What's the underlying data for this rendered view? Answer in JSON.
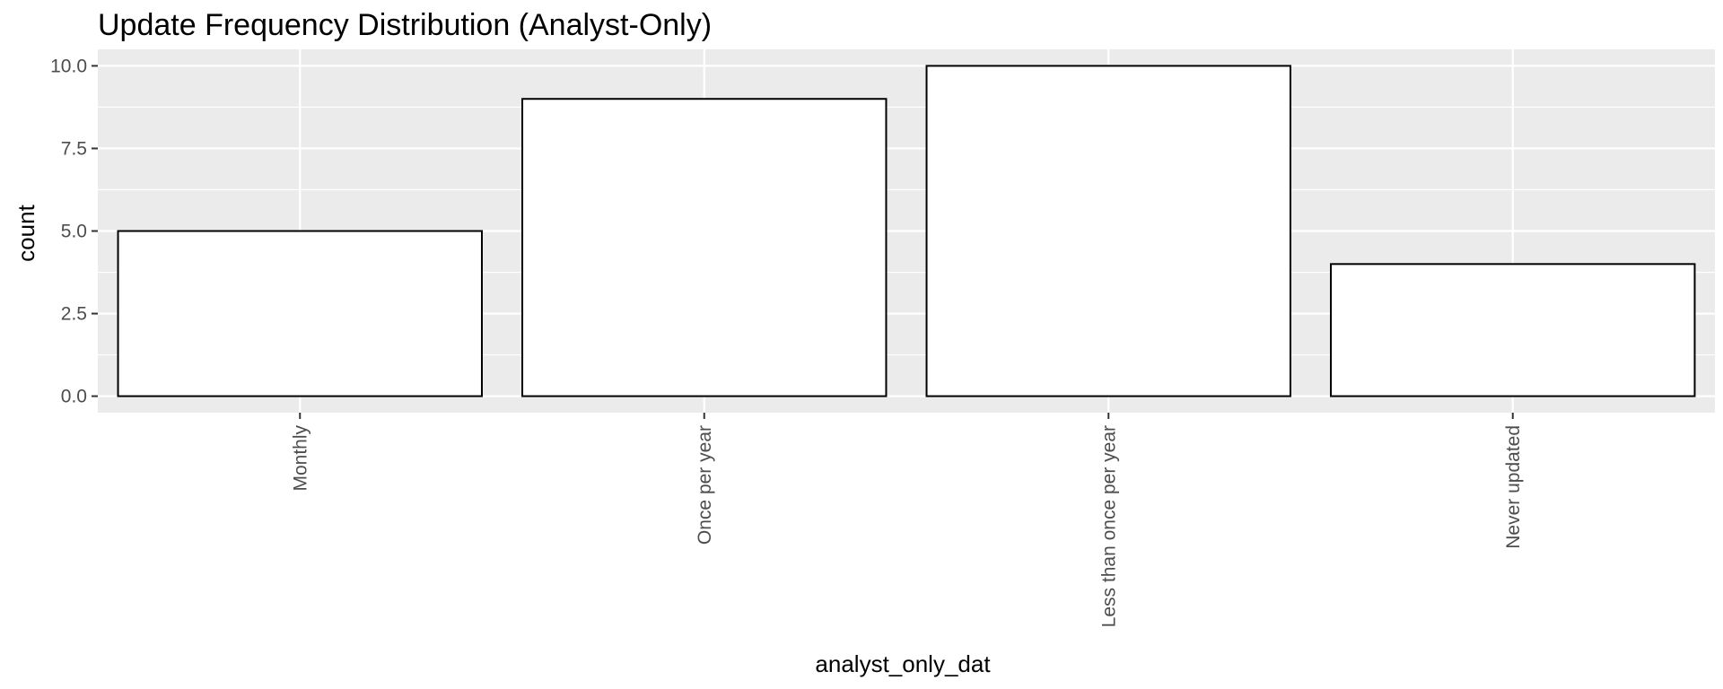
{
  "chart_data": {
    "type": "bar",
    "title": "Update Frequency Distribution (Analyst-Only)",
    "xlabel": "analyst_only_dat",
    "ylabel": "count",
    "categories": [
      "Monthly",
      "Once per year",
      "Less than once per year",
      "Never updated"
    ],
    "values": [
      5,
      9,
      10,
      4
    ],
    "ylim": [
      -0.5,
      10.5
    ],
    "yticks": [
      0,
      2.5,
      5,
      7.5,
      10
    ],
    "ytick_labels": [
      "0.0",
      "2.5",
      "5.0",
      "7.5",
      "10.0"
    ],
    "grid": true,
    "legend": "none",
    "colors": {
      "panel_background": "#ebebeb",
      "grid_line": "#ffffff",
      "bar_fill": "#ffffff",
      "bar_outline": "#000000",
      "tick_text": "#4d4d4d",
      "title_text": "#000000"
    }
  }
}
